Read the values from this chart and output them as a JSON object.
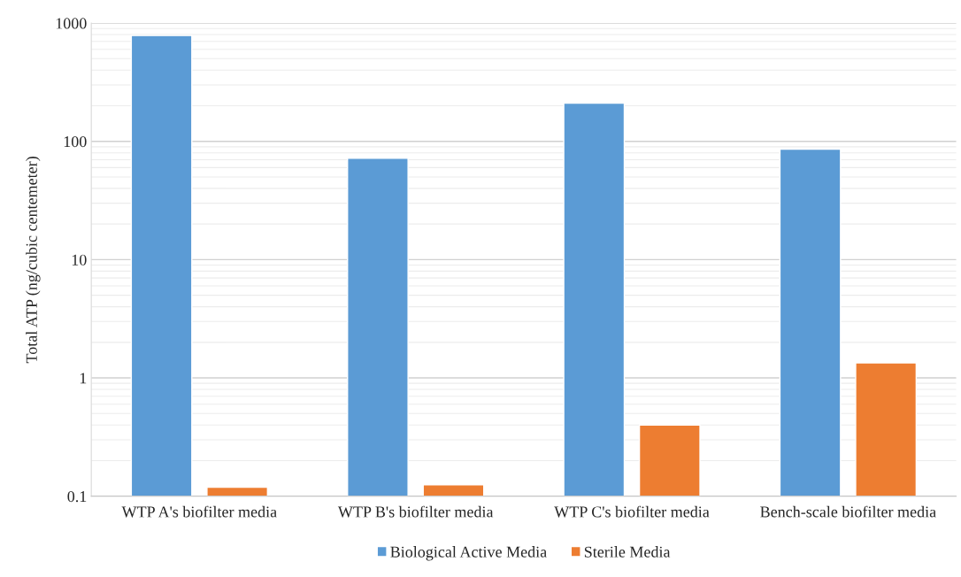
{
  "chart_data": {
    "type": "bar",
    "ylabel": "Total ATP (ng/cubic centemeter)",
    "categories": [
      "WTP A's biofilter media",
      "WTP B's biofilter media",
      "WTP C's biofilter media",
      "Bench-scale biofilter media"
    ],
    "series": [
      {
        "name": "Biological Active Media",
        "color": "#5b9bd5",
        "values": [
          785,
          72,
          210,
          86
        ]
      },
      {
        "name": "Sterile Media",
        "color": "#ed7d31",
        "values": [
          0.119,
          0.125,
          0.4,
          1.34
        ]
      }
    ],
    "log": true,
    "ylim": [
      0.1,
      1000
    ],
    "yticks": [
      0.1,
      1,
      10,
      100,
      1000
    ],
    "grid": "y",
    "legend": "bottom"
  }
}
